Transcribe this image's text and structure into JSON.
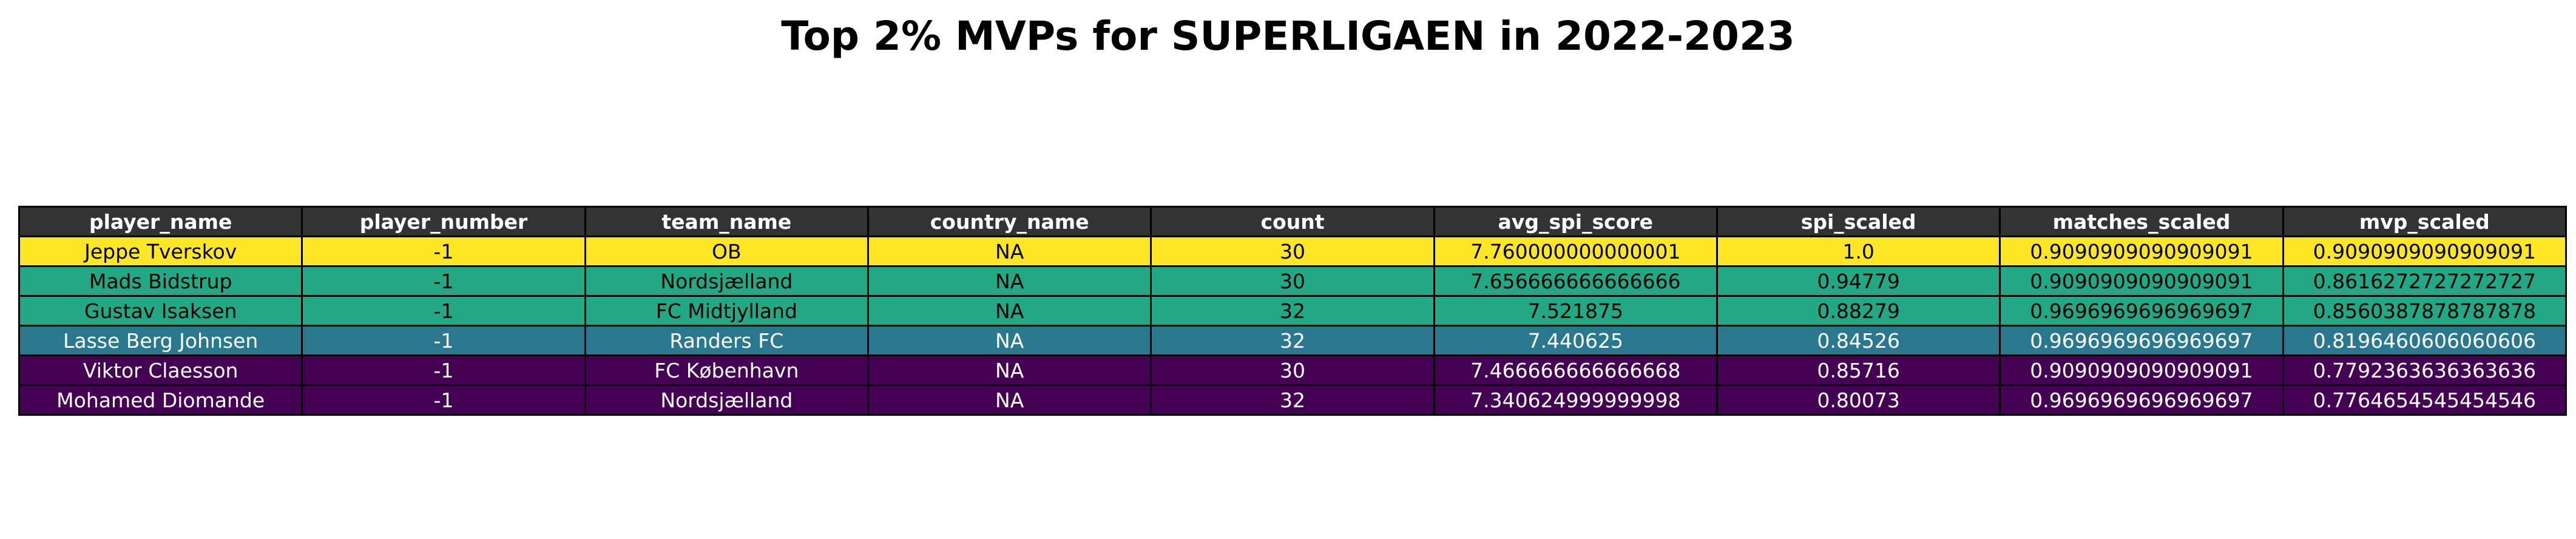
{
  "title": "Top 2% MVPs for SUPERLIGAEN in 2022-2023",
  "header_bg": "#333333",
  "header_color": "#ffffff",
  "chart_data": {
    "type": "table",
    "title": "Top 2% MVPs for SUPERLIGAEN in 2022-2023",
    "columns": [
      "player_name",
      "player_number",
      "team_name",
      "country_name",
      "count",
      "avg_spi_score",
      "spi_scaled",
      "matches_scaled",
      "mvp_scaled"
    ],
    "rows": [
      {
        "cells": [
          "Jeppe Tverskov",
          "-1",
          "OB",
          "NA",
          "30",
          "7.760000000000001",
          "1.0",
          "0.9090909090909091",
          "0.9090909090909091"
        ],
        "bg": "#fde725",
        "color": "#000000"
      },
      {
        "cells": [
          "Mads Bidstrup",
          "-1",
          "Nordsjælland",
          "NA",
          "30",
          "7.656666666666666",
          "0.94779",
          "0.9090909090909091",
          "0.8616272727272727"
        ],
        "bg": "#22a884",
        "color": "#000000"
      },
      {
        "cells": [
          "Gustav Isaksen",
          "-1",
          "FC Midtjylland",
          "NA",
          "32",
          "7.521875",
          "0.88279",
          "0.9696969696969697",
          "0.8560387878787878"
        ],
        "bg": "#22a884",
        "color": "#000000"
      },
      {
        "cells": [
          "Lasse Berg Johnsen",
          "-1",
          "Randers FC",
          "NA",
          "32",
          "7.440625",
          "0.84526",
          "0.9696969696969697",
          "0.8196460606060606"
        ],
        "bg": "#2a788e",
        "color": "#ffffff"
      },
      {
        "cells": [
          "Viktor Claesson",
          "-1",
          "FC København",
          "NA",
          "30",
          "7.466666666666668",
          "0.85716",
          "0.9090909090909091",
          "0.7792363636363636"
        ],
        "bg": "#440154",
        "color": "#ffffff"
      },
      {
        "cells": [
          "Mohamed Diomande",
          "-1",
          "Nordsjælland",
          "NA",
          "32",
          "7.340624999999998",
          "0.80073",
          "0.9696969696969697",
          "0.7764654545454546"
        ],
        "bg": "#440154",
        "color": "#ffffff"
      }
    ]
  }
}
